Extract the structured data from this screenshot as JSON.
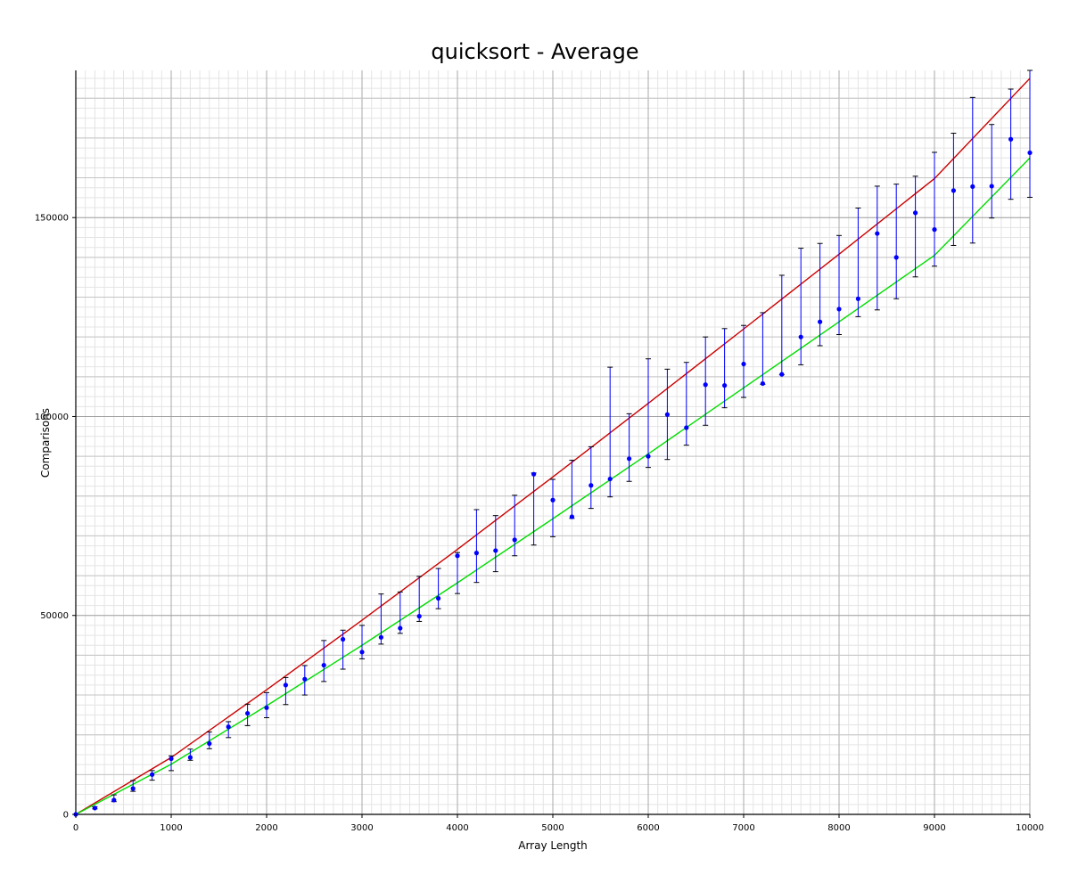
{
  "chart_data": {
    "type": "scatter",
    "title": "quicksort - Average",
    "xlabel": "Array Length",
    "ylabel": "Comparisons",
    "xlim": [
      0,
      10000
    ],
    "ylim": [
      0,
      187000
    ],
    "x_ticks": [
      0,
      1000,
      2000,
      3000,
      4000,
      5000,
      6000,
      7000,
      8000,
      9000,
      10000
    ],
    "x_tick_labels": [
      "0",
      "1000",
      "2000",
      "3000",
      "4000",
      "5000",
      "6000",
      "7000",
      "8000",
      "9000",
      "10000"
    ],
    "y_ticks": [
      0,
      50000,
      100000,
      150000
    ],
    "y_tick_labels": [
      "0",
      "50000",
      "100000",
      "150000"
    ],
    "grid": true,
    "colors": {
      "points": "#0000ff",
      "upper_curve": "#cc0000",
      "lower_curve": "#00dd00"
    },
    "series": [
      {
        "style": "points-with-error-bars",
        "color": "#0000ff",
        "x": [
          0,
          200,
          400,
          600,
          800,
          1000,
          1200,
          1400,
          1600,
          1800,
          2000,
          2200,
          2400,
          2600,
          2800,
          3000,
          3200,
          3400,
          3600,
          3800,
          4000,
          4200,
          4400,
          4600,
          4800,
          5000,
          5200,
          5400,
          5600,
          5800,
          6000,
          6200,
          6400,
          6600,
          6800,
          7000,
          7200,
          7400,
          7600,
          7800,
          8000,
          8200,
          8400,
          8600,
          8800,
          9000,
          9200,
          9400,
          9600,
          9800,
          10000
        ],
        "y": [
          0,
          1600,
          3600,
          6500,
          10000,
          14000,
          14300,
          17800,
          22000,
          25400,
          26800,
          32500,
          34000,
          37500,
          44000,
          40800,
          44500,
          46800,
          49800,
          54300,
          65000,
          65700,
          66300,
          69000,
          85500,
          79000,
          74800,
          82700,
          84300,
          89400,
          90000,
          100500,
          97200,
          108000,
          107800,
          113200,
          108300,
          110600,
          120000,
          123800,
          127000,
          129600,
          146000,
          140000,
          151200,
          147000,
          156800,
          157800,
          157900,
          169700,
          166300
        ],
        "err_low": [
          0,
          1400,
          3200,
          5800,
          8600,
          11000,
          13600,
          16500,
          19300,
          22300,
          24300,
          27600,
          30000,
          33400,
          36500,
          39100,
          42800,
          45500,
          48500,
          51700,
          55500,
          58300,
          61000,
          65000,
          67700,
          69800,
          74400,
          76900,
          79800,
          83700,
          87200,
          89200,
          92800,
          97800,
          102200,
          104800,
          108100,
          110500,
          113000,
          117800,
          120600,
          125100,
          126800,
          129600,
          135100,
          137800,
          143000,
          143600,
          149900,
          154600,
          155100
        ],
        "err_high": [
          0,
          1900,
          4900,
          8500,
          11000,
          14700,
          16400,
          20700,
          23300,
          27700,
          30600,
          34400,
          37400,
          43700,
          46300,
          47500,
          55400,
          55900,
          59800,
          61800,
          65800,
          76600,
          75100,
          80200,
          85800,
          84200,
          89000,
          92400,
          112400,
          100700,
          114500,
          111900,
          113600,
          120000,
          122100,
          122900,
          126100,
          135500,
          142300,
          143500,
          145500,
          152400,
          157900,
          158400,
          160400,
          166400,
          171200,
          180200,
          173400,
          182300,
          187000
        ]
      },
      {
        "style": "line",
        "color": "#cc0000",
        "x": [
          0,
          1000,
          2000,
          3000,
          4000,
          5000,
          6000,
          7000,
          8000,
          9000,
          10000
        ],
        "y": [
          0,
          14300,
          31300,
          48800,
          66600,
          84800,
          103300,
          122000,
          140800,
          159800,
          185000
        ]
      },
      {
        "style": "line",
        "color": "#00dd00",
        "x": [
          0,
          1000,
          2000,
          3000,
          4000,
          5000,
          6000,
          7000,
          8000,
          9000,
          10000
        ],
        "y": [
          0,
          12600,
          27300,
          42500,
          58200,
          74300,
          90600,
          107200,
          123800,
          140500,
          165000
        ]
      }
    ]
  }
}
